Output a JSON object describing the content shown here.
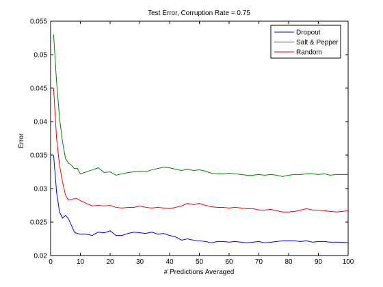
{
  "chart_data": {
    "type": "line",
    "title": "Test Error, Corruption Rate = 0.75",
    "xlabel": "# Predictions Averaged",
    "ylabel": "Error",
    "xlim": [
      0,
      100
    ],
    "ylim": [
      0.02,
      0.055
    ],
    "xticks": [
      "0",
      "10",
      "20",
      "30",
      "40",
      "50",
      "60",
      "70",
      "80",
      "90",
      "100"
    ],
    "yticks": [
      "0.02",
      "0.025",
      "0.03",
      "0.035",
      "0.04",
      "0.045",
      "0.05",
      "0.055"
    ],
    "legend_position": "top-right",
    "series": [
      {
        "name": "Dropout",
        "color": "#0000ff",
        "x": [
          1,
          2,
          3,
          4,
          5,
          6,
          7,
          8,
          9,
          10,
          12,
          14,
          16,
          18,
          20,
          22,
          24,
          26,
          28,
          30,
          32,
          34,
          36,
          38,
          40,
          42,
          44,
          46,
          48,
          50,
          52,
          54,
          56,
          58,
          60,
          62,
          64,
          66,
          68,
          70,
          72,
          74,
          76,
          78,
          80,
          82,
          84,
          86,
          88,
          90,
          92,
          94,
          96,
          98,
          100
        ],
        "values": [
          0.035,
          0.0295,
          0.0265,
          0.0256,
          0.026,
          0.0255,
          0.0245,
          0.0235,
          0.0233,
          0.0232,
          0.0232,
          0.023,
          0.0235,
          0.0234,
          0.0237,
          0.023,
          0.023,
          0.0233,
          0.0235,
          0.0234,
          0.0233,
          0.0235,
          0.0232,
          0.0233,
          0.023,
          0.0228,
          0.0223,
          0.0225,
          0.0223,
          0.0222,
          0.0221,
          0.0219,
          0.0221,
          0.0221,
          0.022,
          0.0221,
          0.022,
          0.0219,
          0.022,
          0.0221,
          0.0219,
          0.022,
          0.0221,
          0.0222,
          0.0222,
          0.0222,
          0.0221,
          0.0222,
          0.022,
          0.0221,
          0.0221,
          0.022,
          0.022,
          0.022,
          0.0219
        ]
      },
      {
        "name": "Salt & Pepper",
        "color": "#008000",
        "x": [
          1,
          2,
          3,
          4,
          5,
          6,
          7,
          8,
          9,
          10,
          12,
          14,
          16,
          18,
          20,
          22,
          24,
          26,
          28,
          30,
          32,
          34,
          36,
          38,
          40,
          42,
          44,
          46,
          48,
          50,
          52,
          54,
          56,
          58,
          60,
          62,
          64,
          66,
          68,
          70,
          72,
          74,
          76,
          78,
          80,
          82,
          84,
          86,
          88,
          90,
          92,
          94,
          96,
          98,
          100
        ],
        "values": [
          0.053,
          0.046,
          0.0405,
          0.037,
          0.0345,
          0.0338,
          0.0335,
          0.033,
          0.033,
          0.0322,
          0.0325,
          0.0328,
          0.0331,
          0.0324,
          0.0325,
          0.032,
          0.0322,
          0.0324,
          0.0325,
          0.0326,
          0.0325,
          0.0328,
          0.033,
          0.0332,
          0.0331,
          0.0329,
          0.0327,
          0.0329,
          0.0327,
          0.0328,
          0.0326,
          0.0323,
          0.0322,
          0.0322,
          0.0323,
          0.0322,
          0.0321,
          0.032,
          0.032,
          0.0321,
          0.032,
          0.0321,
          0.032,
          0.0318,
          0.032,
          0.0321,
          0.0321,
          0.0322,
          0.0322,
          0.0321,
          0.0322,
          0.032,
          0.0321,
          0.0321,
          0.0321
        ]
      },
      {
        "name": "Random",
        "color": "#ff0000",
        "x": [
          1,
          2,
          3,
          4,
          5,
          6,
          7,
          8,
          9,
          10,
          12,
          14,
          16,
          18,
          20,
          22,
          24,
          26,
          28,
          30,
          32,
          34,
          36,
          38,
          40,
          42,
          44,
          46,
          48,
          50,
          52,
          54,
          56,
          58,
          60,
          62,
          64,
          66,
          68,
          70,
          72,
          74,
          76,
          78,
          80,
          82,
          84,
          86,
          88,
          90,
          92,
          94,
          96,
          98,
          100
        ],
        "values": [
          0.045,
          0.0375,
          0.0335,
          0.031,
          0.029,
          0.0283,
          0.0284,
          0.0285,
          0.0285,
          0.0282,
          0.0278,
          0.0274,
          0.0275,
          0.0274,
          0.0275,
          0.0272,
          0.0271,
          0.0272,
          0.0272,
          0.0274,
          0.0272,
          0.0271,
          0.0272,
          0.0271,
          0.027,
          0.0272,
          0.0274,
          0.0278,
          0.0276,
          0.0278,
          0.0275,
          0.0273,
          0.0272,
          0.0272,
          0.0271,
          0.0272,
          0.0271,
          0.027,
          0.027,
          0.0268,
          0.0268,
          0.0269,
          0.0267,
          0.0265,
          0.0265,
          0.0266,
          0.0268,
          0.027,
          0.0268,
          0.0268,
          0.0267,
          0.0266,
          0.0265,
          0.0266,
          0.0267
        ]
      }
    ]
  }
}
